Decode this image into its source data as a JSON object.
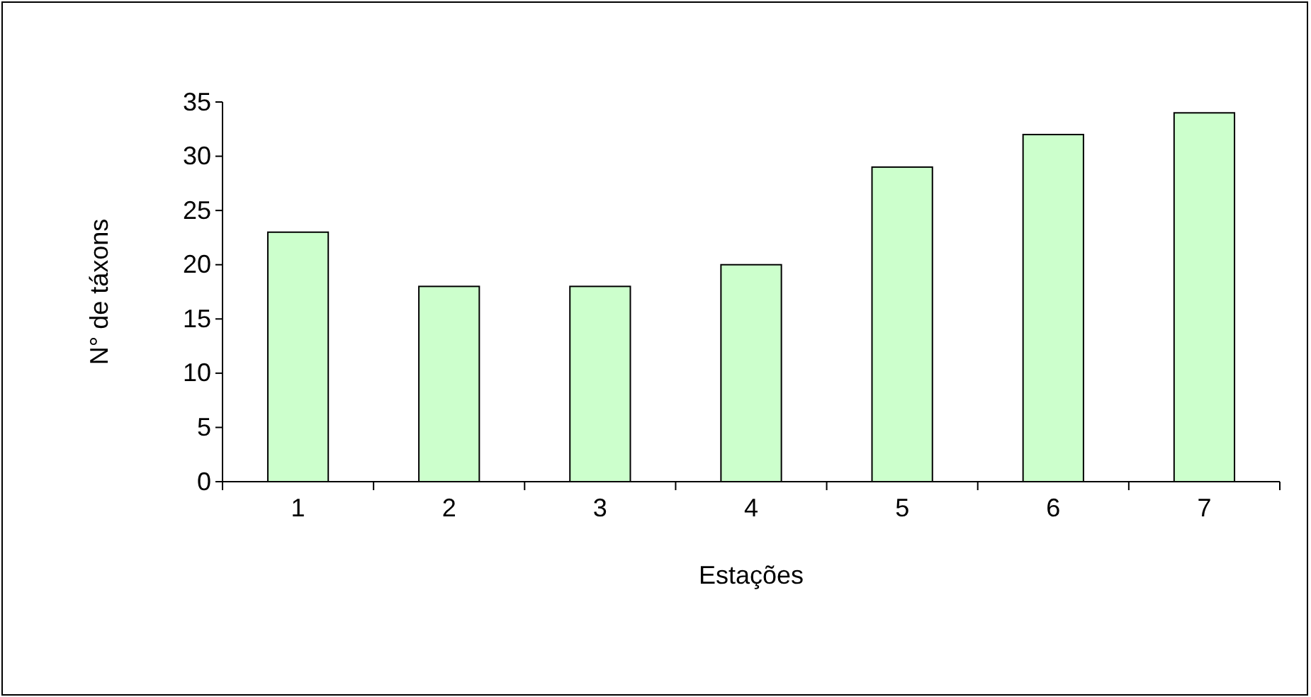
{
  "chart_data": {
    "type": "bar",
    "xlabel": "Estações",
    "ylabel": "N° de táxons",
    "categories": [
      "1",
      "2",
      "3",
      "4",
      "5",
      "6",
      "7"
    ],
    "values": [
      23,
      18,
      18,
      20,
      29,
      32,
      34
    ],
    "color": "#ccffcc",
    "ylim": [
      0,
      35
    ],
    "yticks": [
      0,
      5,
      10,
      15,
      20,
      25,
      30,
      35
    ],
    "grid": false
  }
}
